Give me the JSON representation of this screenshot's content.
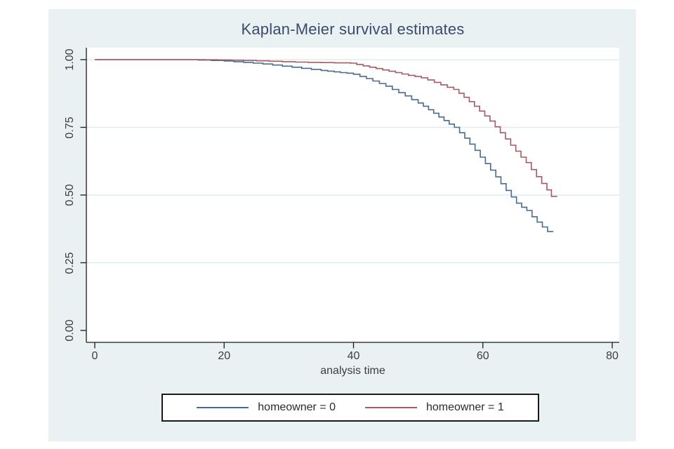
{
  "window": {
    "background": "#ffffff",
    "graph_region_background": "#eaf1f3"
  },
  "chart_data": {
    "type": "line",
    "subtype": "step-survival",
    "title": "Kaplan-Meier survival estimates",
    "xlabel": "analysis time",
    "ylabel": "",
    "xlim": [
      -1.3,
      81
    ],
    "ylim": [
      0.0,
      1.0
    ],
    "xticks": {
      "values": [
        0,
        20,
        40,
        60,
        80
      ],
      "labels": [
        "0",
        "20",
        "40",
        "60",
        "80"
      ]
    },
    "yticks": {
      "values": [
        0,
        0.25,
        0.5,
        0.75,
        1.0
      ],
      "labels": [
        "0.00",
        "0.25",
        "0.50",
        "0.75",
        "1.00"
      ]
    },
    "grid": true,
    "gridline_color": "#dfecee",
    "plot_background": "#ffffff",
    "axis_color": "#1a1a1a",
    "tick_text_color": "#3d3d3d",
    "title_color": "#3a4a6e",
    "legend_position": "bottom-center",
    "series": [
      {
        "name": "homeowner = 0",
        "color": "#476c94",
        "points": [
          [
            0,
            1.0
          ],
          [
            16,
            0.9985
          ],
          [
            18,
            0.997
          ],
          [
            20,
            0.995
          ],
          [
            21.5,
            0.9925
          ],
          [
            23,
            0.99
          ],
          [
            24.5,
            0.987
          ],
          [
            26,
            0.984
          ],
          [
            27.5,
            0.98
          ],
          [
            29,
            0.976
          ],
          [
            30.5,
            0.972
          ],
          [
            32,
            0.968
          ],
          [
            33.5,
            0.964
          ],
          [
            35,
            0.96
          ],
          [
            36,
            0.9575
          ],
          [
            37,
            0.955
          ],
          [
            38,
            0.952
          ],
          [
            39,
            0.95
          ],
          [
            40,
            0.946
          ],
          [
            41,
            0.938
          ],
          [
            42,
            0.93
          ],
          [
            43,
            0.921
          ],
          [
            44,
            0.912
          ],
          [
            45,
            0.902
          ],
          [
            46,
            0.89
          ],
          [
            47,
            0.878
          ],
          [
            48,
            0.866
          ],
          [
            49,
            0.852
          ],
          [
            50,
            0.84
          ],
          [
            50.8,
            0.828
          ],
          [
            51.6,
            0.815
          ],
          [
            52.4,
            0.802
          ],
          [
            53.2,
            0.788
          ],
          [
            54,
            0.775
          ],
          [
            54.8,
            0.762
          ],
          [
            55.6,
            0.75
          ],
          [
            56.4,
            0.73
          ],
          [
            57.2,
            0.71
          ],
          [
            58,
            0.688
          ],
          [
            58.8,
            0.665
          ],
          [
            59.6,
            0.64
          ],
          [
            60.4,
            0.616
          ],
          [
            61.2,
            0.592
          ],
          [
            62,
            0.567
          ],
          [
            62.8,
            0.542
          ],
          [
            63.6,
            0.517
          ],
          [
            64.4,
            0.493
          ],
          [
            65.2,
            0.47
          ],
          [
            66,
            0.455
          ],
          [
            66.8,
            0.443
          ],
          [
            67.6,
            0.42
          ],
          [
            68.4,
            0.4
          ],
          [
            69.2,
            0.382
          ],
          [
            70,
            0.365
          ],
          [
            70.9,
            0.365
          ]
        ]
      },
      {
        "name": "homeowner = 1",
        "color": "#a65a61",
        "points": [
          [
            0,
            1.0
          ],
          [
            17,
            0.9995
          ],
          [
            19,
            0.999
          ],
          [
            21,
            0.998
          ],
          [
            23,
            0.997
          ],
          [
            25,
            0.9955
          ],
          [
            27,
            0.994
          ],
          [
            29,
            0.9925
          ],
          [
            31,
            0.991
          ],
          [
            33,
            0.99
          ],
          [
            35,
            0.989
          ],
          [
            37,
            0.988
          ],
          [
            39.5,
            0.987
          ],
          [
            40.5,
            0.982
          ],
          [
            41.5,
            0.977
          ],
          [
            42.5,
            0.972
          ],
          [
            43.5,
            0.967
          ],
          [
            44.5,
            0.962
          ],
          [
            45.5,
            0.957
          ],
          [
            46.5,
            0.952
          ],
          [
            47.5,
            0.947
          ],
          [
            48.5,
            0.942
          ],
          [
            49.5,
            0.938
          ],
          [
            50.5,
            0.933
          ],
          [
            51.5,
            0.925
          ],
          [
            52.5,
            0.916
          ],
          [
            53.5,
            0.907
          ],
          [
            54.5,
            0.898
          ],
          [
            55.5,
            0.89
          ],
          [
            56.3,
            0.876
          ],
          [
            57.1,
            0.861
          ],
          [
            57.9,
            0.845
          ],
          [
            58.7,
            0.828
          ],
          [
            59.5,
            0.81
          ],
          [
            60.3,
            0.792
          ],
          [
            61.1,
            0.773
          ],
          [
            61.9,
            0.752
          ],
          [
            62.7,
            0.73
          ],
          [
            63.5,
            0.707
          ],
          [
            64.3,
            0.684
          ],
          [
            65.1,
            0.662
          ],
          [
            65.9,
            0.64
          ],
          [
            66.7,
            0.62
          ],
          [
            67.5,
            0.594
          ],
          [
            68.3,
            0.568
          ],
          [
            69.1,
            0.543
          ],
          [
            69.9,
            0.519
          ],
          [
            70.6,
            0.495
          ],
          [
            71.5,
            0.495
          ]
        ]
      }
    ]
  }
}
